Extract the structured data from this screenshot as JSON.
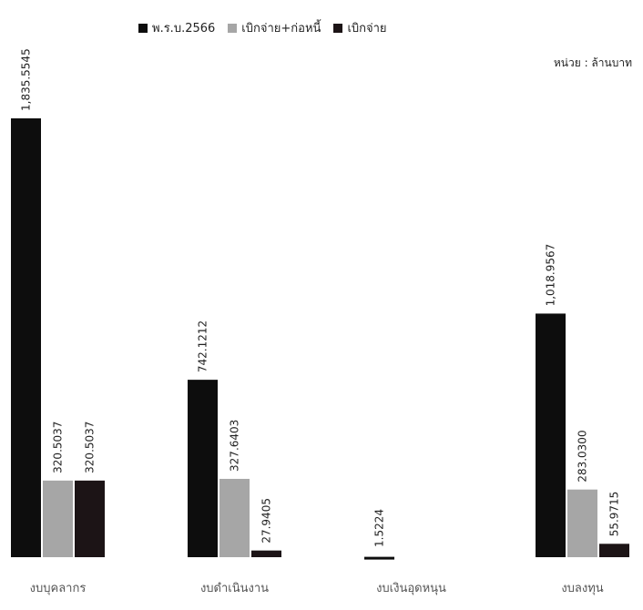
{
  "chart_data": {
    "type": "bar",
    "unit_label": "หน่วย : ล้านบาท",
    "categories": [
      "งบบุคลากร",
      "งบดำเนินงาน",
      "งบเงินอุดหนุน",
      "งบลงทุน"
    ],
    "series": [
      {
        "name": "พ.ร.บ.2566",
        "color": "#0d0d0d",
        "values": [
          1835.5545,
          742.1212,
          1.5224,
          1018.9567
        ],
        "labels": [
          "1,835.5545",
          "742.1212",
          "1.5224",
          "1,018.9567"
        ]
      },
      {
        "name": "เบิกจ่าย+ก่อหนี้",
        "color": "#a6a6a6",
        "values": [
          320.5037,
          327.6403,
          0,
          283.03
        ],
        "labels": [
          "320.5037",
          "327.6403",
          "",
          "283.0300"
        ]
      },
      {
        "name": "เบิกจ่าย",
        "color": "#1c1416",
        "values": [
          320.5037,
          27.9405,
          0,
          55.9715
        ],
        "labels": [
          "320.5037",
          "27.9405",
          "",
          "55.9715"
        ]
      }
    ],
    "ylim": [
      0,
      1835.5545
    ],
    "grid": false,
    "legend_position": "top"
  }
}
